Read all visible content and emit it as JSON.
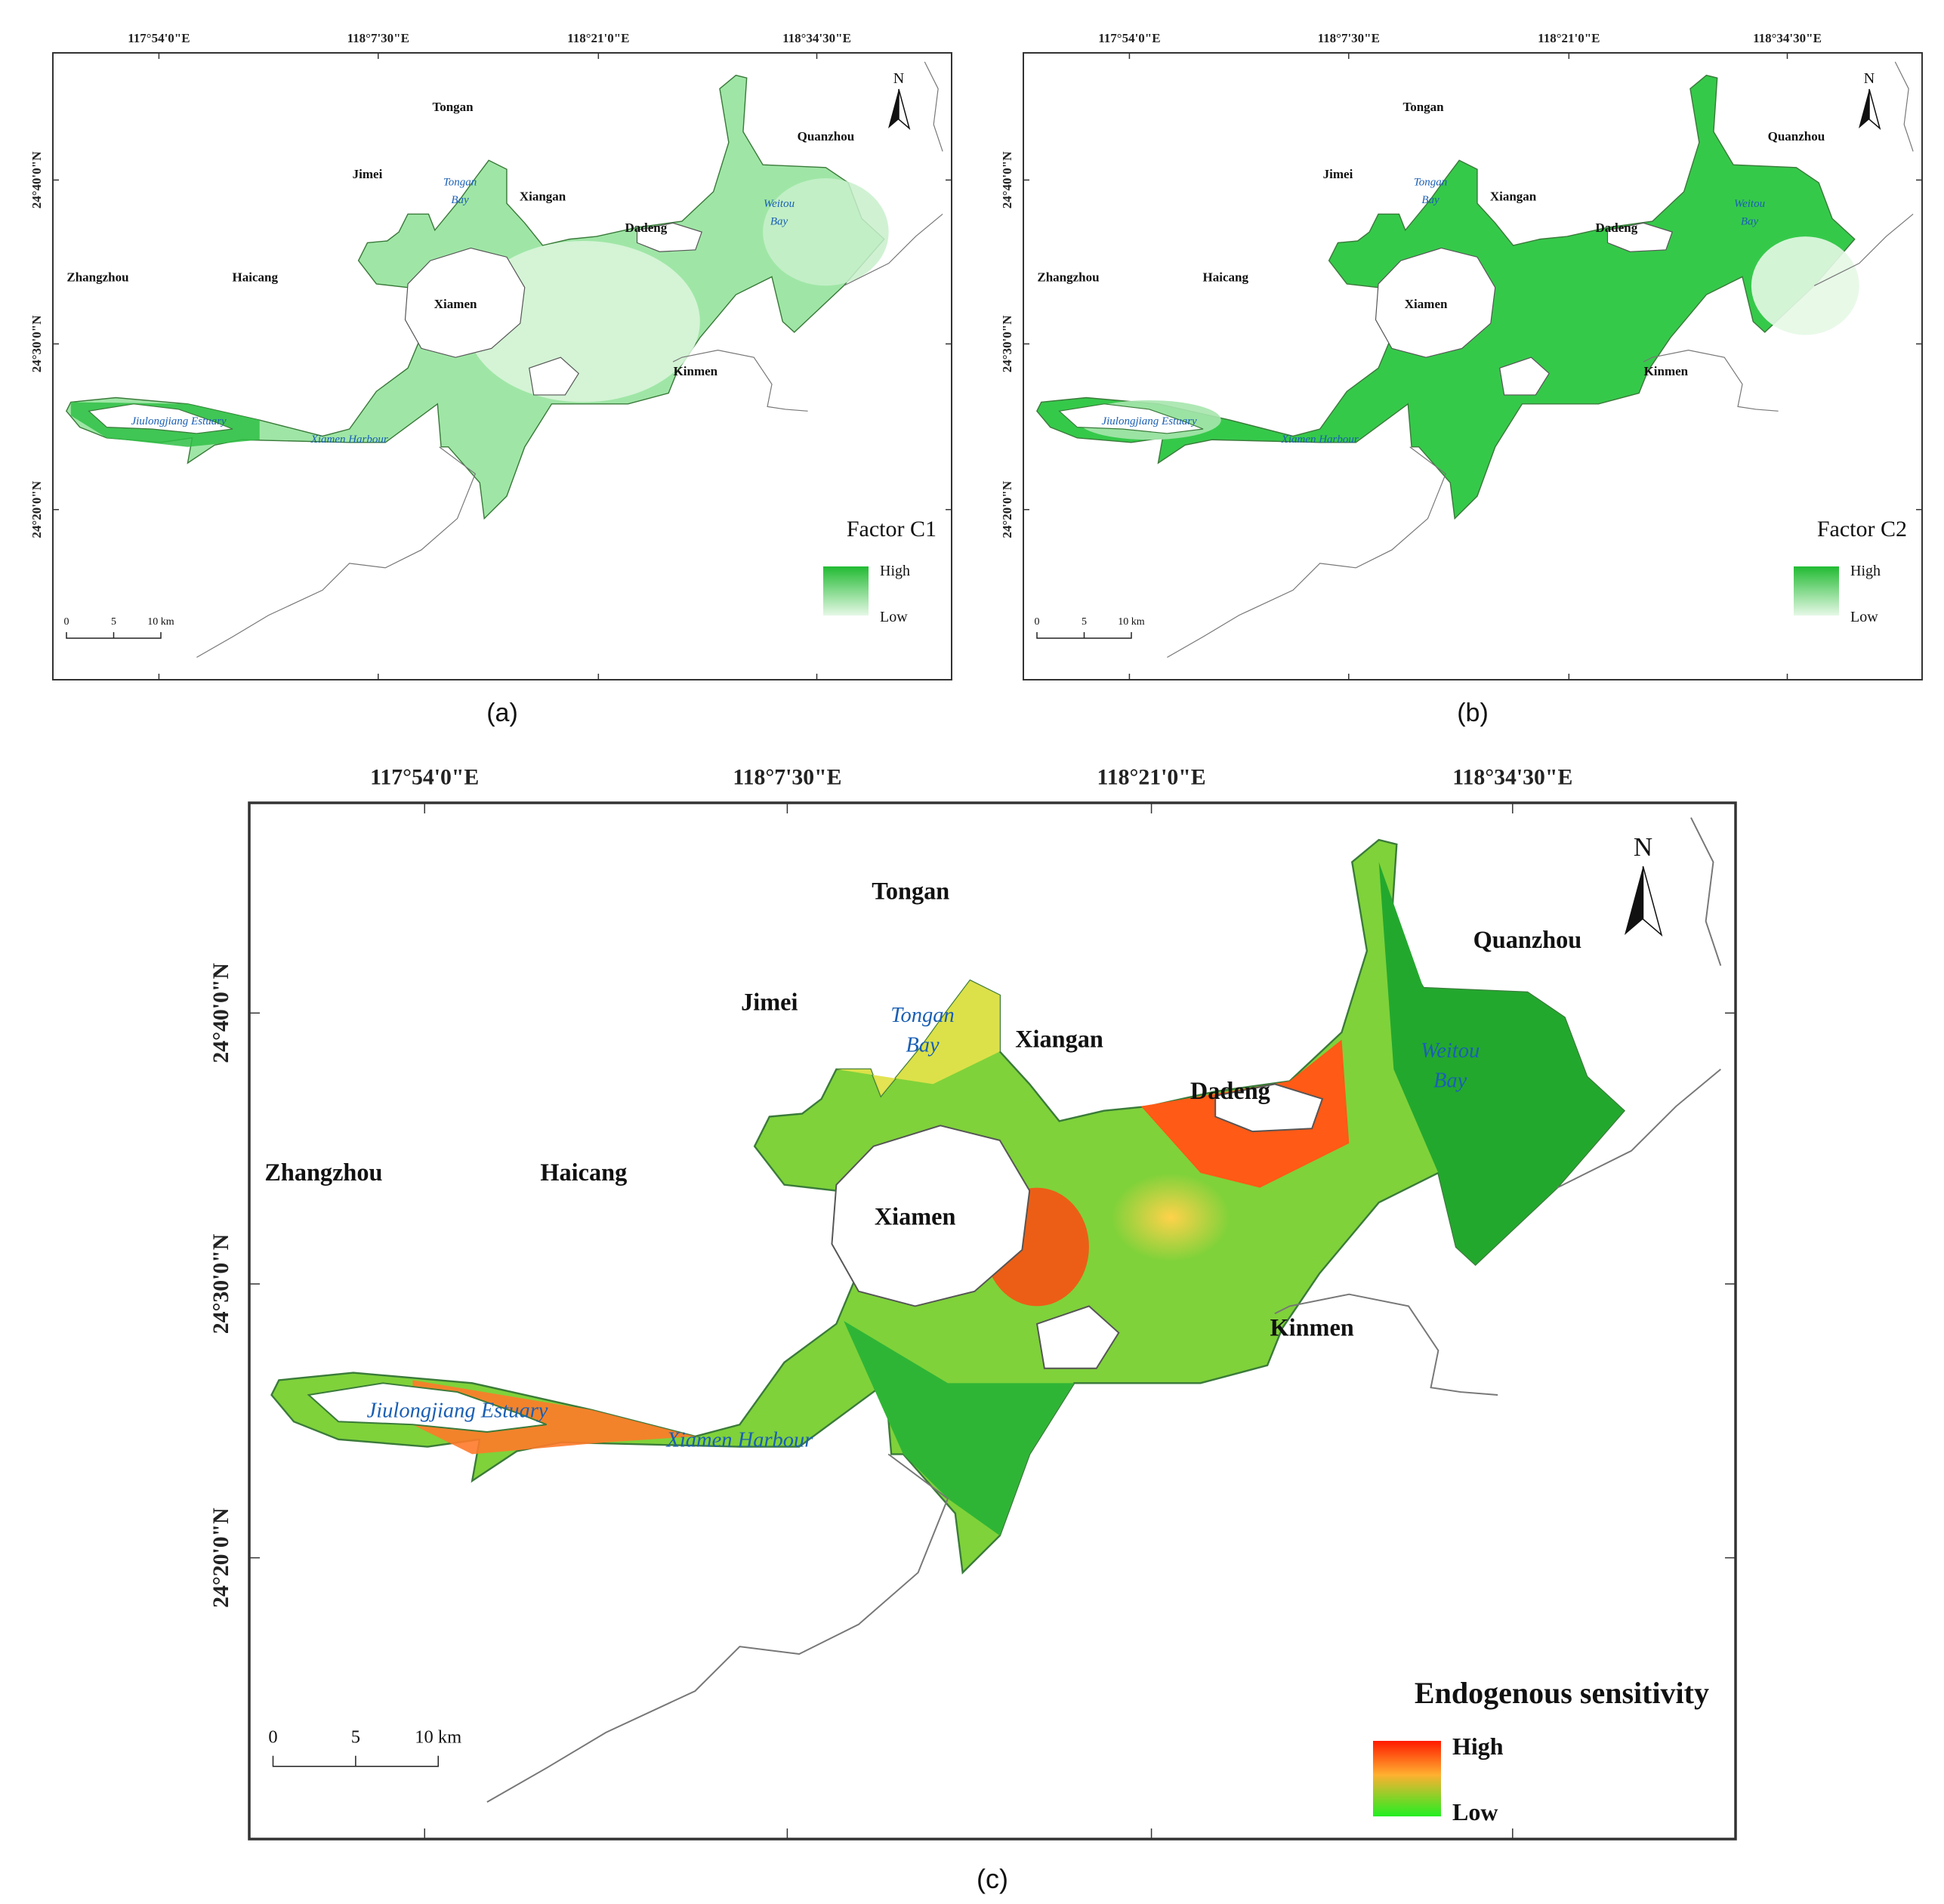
{
  "panels": [
    {
      "id": "a",
      "caption": "(a)",
      "legend": {
        "title": "Factor C1",
        "high": "High",
        "low": "Low",
        "high_color": "#22bb33",
        "low_color": "#dff5df"
      },
      "lon_ticks": [
        "117°54'0\"E",
        "118°7'30\"E",
        "118°21'0\"E",
        "118°34'30\"E"
      ],
      "lat_ticks": [
        "24°40'0\"N",
        "24°30'0\"N",
        "24°20'0\"N"
      ],
      "scale": {
        "labels": [
          "0",
          "5",
          "10 km"
        ]
      },
      "north": "N",
      "places": [
        "Zhangzhou",
        "Haicang",
        "Xiamen",
        "Jimei",
        "Tongan",
        "Xiangan",
        "Dadeng",
        "Kinmen",
        "Quanzhou"
      ],
      "water": [
        "Jiulongjiang Estuary",
        "Xiamen Harbour",
        "Tongan",
        "Bay",
        "Weitou",
        "Bay"
      ]
    },
    {
      "id": "b",
      "caption": "(b)",
      "legend": {
        "title": "Factor C2",
        "high": "High",
        "low": "Low",
        "high_color": "#22bb33",
        "low_color": "#dff5df"
      },
      "lon_ticks": [
        "117°54'0\"E",
        "118°7'30\"E",
        "118°21'0\"E",
        "118°34'30\"E"
      ],
      "lat_ticks": [
        "24°40'0\"N",
        "24°30'0\"N",
        "24°20'0\"N"
      ],
      "scale": {
        "labels": [
          "0",
          "5",
          "10 km"
        ]
      },
      "north": "N",
      "places": [
        "Zhangzhou",
        "Haicang",
        "Xiamen",
        "Jimei",
        "Tongan",
        "Xiangan",
        "Dadeng",
        "Kinmen",
        "Quanzhou"
      ],
      "water": [
        "Jiulongjiang Estuary",
        "Xiamen Harbour",
        "Tongan",
        "Bay",
        "Weitou",
        "Bay"
      ]
    },
    {
      "id": "c",
      "caption": "(c)",
      "legend": {
        "title": "Endogenous sensitivity",
        "high": "High",
        "low": "Low",
        "high_color": "#ff2a00",
        "mid_color": "#ffc030",
        "low_color": "#22ee22"
      },
      "lon_ticks": [
        "117°54'0\"E",
        "118°7'30\"E",
        "118°21'0\"E",
        "118°34'30\"E"
      ],
      "lat_ticks": [
        "24°40'0\"N",
        "24°30'0\"N",
        "24°20'0\"N"
      ],
      "scale": {
        "labels": [
          "0",
          "5",
          "10 km"
        ]
      },
      "north": "N",
      "places": [
        "Zhangzhou",
        "Haicang",
        "Xiamen",
        "Jimei",
        "Tongan",
        "Xiangan",
        "Dadeng",
        "Kinmen",
        "Quanzhou"
      ],
      "water": [
        "Jiulongjiang Estuary",
        "Xiamen Harbour",
        "Tongan",
        "Bay",
        "Weitou",
        "Bay"
      ]
    }
  ]
}
